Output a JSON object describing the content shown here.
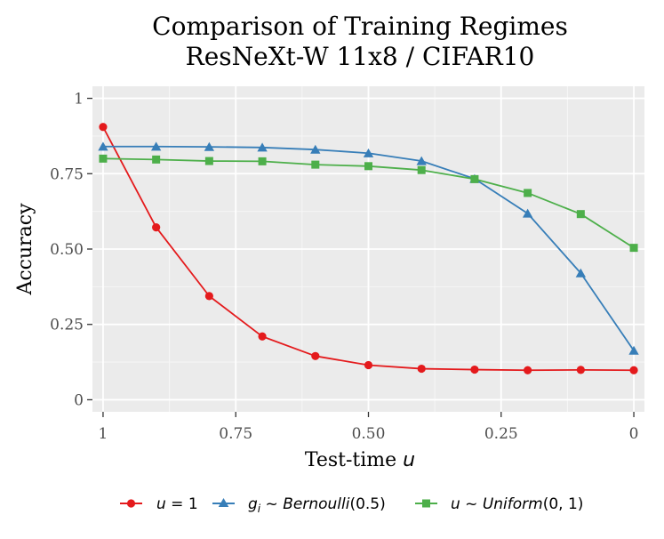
{
  "chart_data": {
    "type": "line",
    "title": [
      "Comparison of Training Regimes",
      "ResNeXt-W 11x8 / CIFAR10"
    ],
    "xlabel": "Test-time ",
    "xlabel_var": "u",
    "ylabel": "Accuracy",
    "x_reversed": true,
    "xlim": [
      1.02,
      -0.02
    ],
    "ylim": [
      -0.04,
      1.04
    ],
    "x_ticks": [
      1,
      0.75,
      0.5,
      0.25,
      0
    ],
    "x_tick_labels": [
      "1",
      "0.75",
      "0.50",
      "0.25",
      "0"
    ],
    "y_ticks": [
      0,
      0.25,
      0.5,
      0.75,
      1
    ],
    "y_tick_labels": [
      "0",
      "0.25",
      "0.50",
      "0.75",
      "1"
    ],
    "grid": true,
    "legend_position": "bottom",
    "x": [
      1.0,
      0.9,
      0.8,
      0.7,
      0.6,
      0.5,
      0.4,
      0.3,
      0.2,
      0.1,
      0.0
    ],
    "series": [
      {
        "name": "u = 1",
        "color": "#e41a1c",
        "marker": "circle",
        "values": [
          0.905,
          0.572,
          0.344,
          0.21,
          0.145,
          0.115,
          0.103,
          0.1,
          0.098,
          0.099,
          0.098
        ]
      },
      {
        "name": "g_i ~ Bernoulli(0.5)",
        "color": "#377eb8",
        "marker": "triangle",
        "values": [
          0.84,
          0.84,
          0.839,
          0.837,
          0.83,
          0.818,
          0.792,
          0.733,
          0.618,
          0.42,
          0.163
        ]
      },
      {
        "name": "u ~ Uniform(0, 1)",
        "color": "#4daf4a",
        "marker": "square",
        "values": [
          0.8,
          0.797,
          0.792,
          0.791,
          0.78,
          0.775,
          0.762,
          0.732,
          0.686,
          0.616,
          0.504
        ]
      }
    ]
  }
}
